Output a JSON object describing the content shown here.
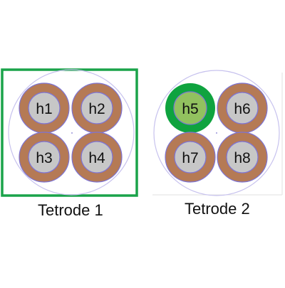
{
  "tetrodes": [
    {
      "label": "Tetrode 1",
      "selected": true,
      "channels": [
        {
          "label": "h1",
          "highlighted": false
        },
        {
          "label": "h2",
          "highlighted": false
        },
        {
          "label": "h3",
          "highlighted": false
        },
        {
          "label": "h4",
          "highlighted": false
        }
      ]
    },
    {
      "label": "Tetrode 2",
      "selected": false,
      "channels": [
        {
          "label": "h5",
          "highlighted": true
        },
        {
          "label": "h6",
          "highlighted": false
        },
        {
          "label": "h7",
          "highlighted": false
        },
        {
          "label": "h8",
          "highlighted": false
        }
      ]
    }
  ],
  "colors": {
    "selection_green": "#1aa34a",
    "ring_copper": "#b57a55",
    "core_gray": "#c7c7c7",
    "highlight_core": "#92c15f",
    "highlight_ring": "#0fa33f",
    "outline_purple": "#7d74d6",
    "bundle_outline": "#c7c2ee"
  }
}
